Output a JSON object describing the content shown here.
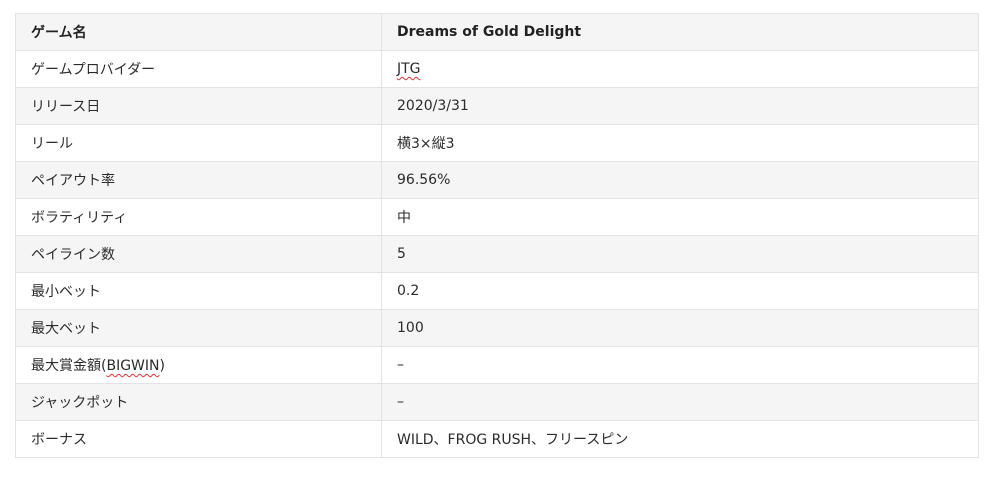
{
  "table": {
    "header": {
      "label": "ゲーム名",
      "value": "Dreams of Gold Delight"
    },
    "rows": [
      {
        "label": "ゲームプロバイダー",
        "value": "JTG"
      },
      {
        "label": "リリース日",
        "value": "2020/3/31"
      },
      {
        "label": "リール",
        "value": "横3×縦3"
      },
      {
        "label": "ペイアウト率",
        "value": "96.56%"
      },
      {
        "label": "ボラティリティ",
        "value": "中"
      },
      {
        "label": "ペイライン数",
        "value": "5"
      },
      {
        "label": "最小ベット",
        "value": "0.2"
      },
      {
        "label": "最大ベット",
        "value": "100"
      },
      {
        "label_prefix": "最大賞金額(",
        "label_marked": "BIGWIN",
        "label_suffix": ")",
        "value": "–"
      },
      {
        "label": "ジャックポット",
        "value": "–"
      },
      {
        "label": "ボーナス",
        "value": "WILD、FROG RUSH、フリースピン"
      }
    ]
  }
}
